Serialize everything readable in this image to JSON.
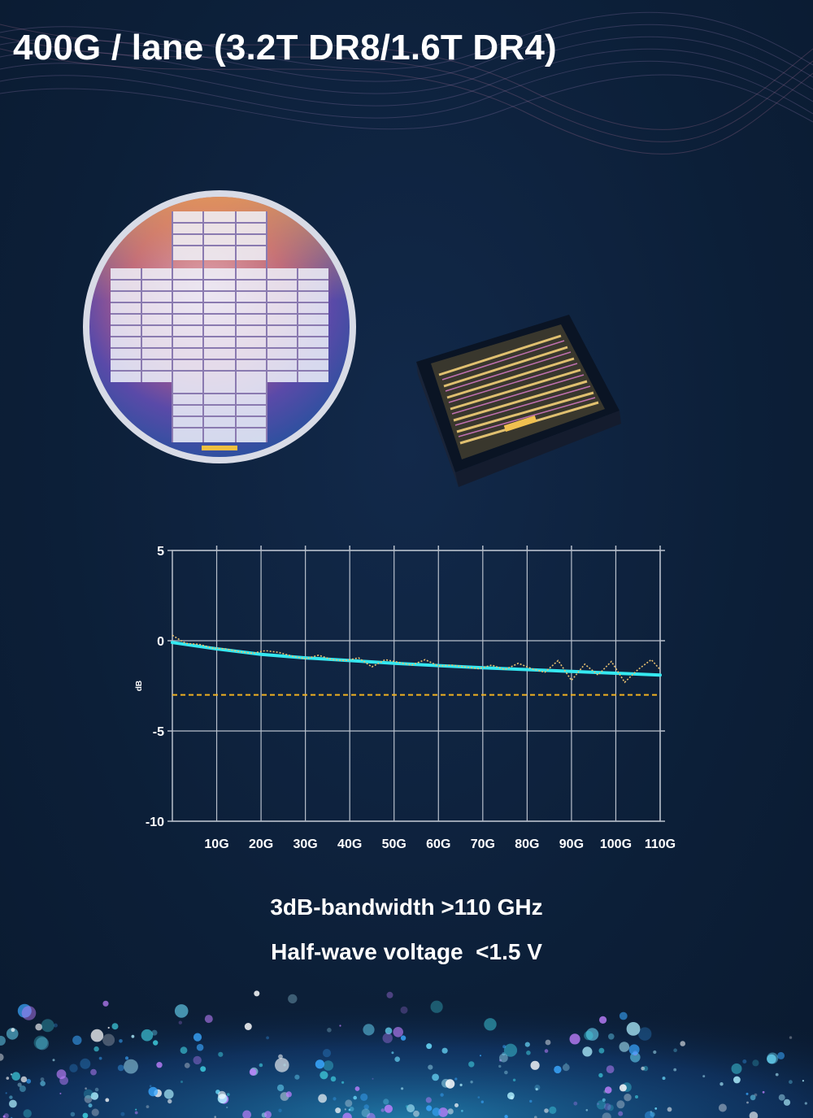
{
  "header": {
    "title": "400G / lane (3.2T DR8/1.6T DR4)"
  },
  "specs": {
    "bandwidth": "3dB-bandwidth >110 GHz",
    "halfwave": "Half-wave voltage  <1.5 V"
  },
  "images": {
    "wafer": "photonic-wafer-photo",
    "chip": "modulator-chip-photo"
  },
  "colors": {
    "background": "#0c1f38",
    "fit_line": "#35e8f0",
    "measured_line": "#e8c070",
    "threshold_line": "#f0b020",
    "grid": "#b8c0cc"
  },
  "chart_data": {
    "type": "line",
    "ylabel": "dB",
    "xlabel": "",
    "xlim": [
      0,
      110
    ],
    "ylim": [
      -10,
      5
    ],
    "x_ticks": [
      10,
      20,
      30,
      40,
      50,
      60,
      70,
      80,
      90,
      100,
      110
    ],
    "x_tick_labels": [
      "10G",
      "20G",
      "30G",
      "40G",
      "50G",
      "60G",
      "70G",
      "80G",
      "90G",
      "100G",
      "110G"
    ],
    "y_ticks": [
      5,
      0,
      -5,
      -10
    ],
    "y_tick_labels": [
      "5",
      "0",
      "-5",
      "-10"
    ],
    "grid": true,
    "legend": "none",
    "series": [
      {
        "style": "solid",
        "color": "#35e8f0",
        "x": [
          0,
          10,
          20,
          30,
          40,
          50,
          60,
          70,
          80,
          90,
          100,
          110
        ],
        "y": [
          -0.1,
          -0.45,
          -0.75,
          -0.95,
          -1.1,
          -1.25,
          -1.38,
          -1.5,
          -1.6,
          -1.7,
          -1.8,
          -1.9
        ]
      },
      {
        "style": "dotted",
        "color": "#e8c070",
        "x": [
          0,
          3,
          6,
          9,
          12,
          15,
          18,
          21,
          24,
          27,
          30,
          33,
          36,
          39,
          42,
          45,
          48,
          51,
          54,
          57,
          60,
          63,
          66,
          69,
          72,
          75,
          78,
          81,
          84,
          87,
          90,
          93,
          96,
          99,
          102,
          105,
          108,
          110
        ],
        "y": [
          0.3,
          -0.15,
          -0.2,
          -0.4,
          -0.45,
          -0.6,
          -0.7,
          -0.55,
          -0.65,
          -0.85,
          -1.0,
          -0.8,
          -1.05,
          -1.1,
          -0.95,
          -1.45,
          -1.05,
          -1.2,
          -1.35,
          -1.05,
          -1.4,
          -1.35,
          -1.45,
          -1.55,
          -1.35,
          -1.6,
          -1.25,
          -1.55,
          -1.75,
          -1.1,
          -2.2,
          -1.3,
          -1.9,
          -1.15,
          -2.3,
          -1.6,
          -1.05,
          -1.6
        ]
      }
    ],
    "threshold": {
      "y": -3,
      "style": "dashed",
      "color": "#f0b020"
    }
  }
}
